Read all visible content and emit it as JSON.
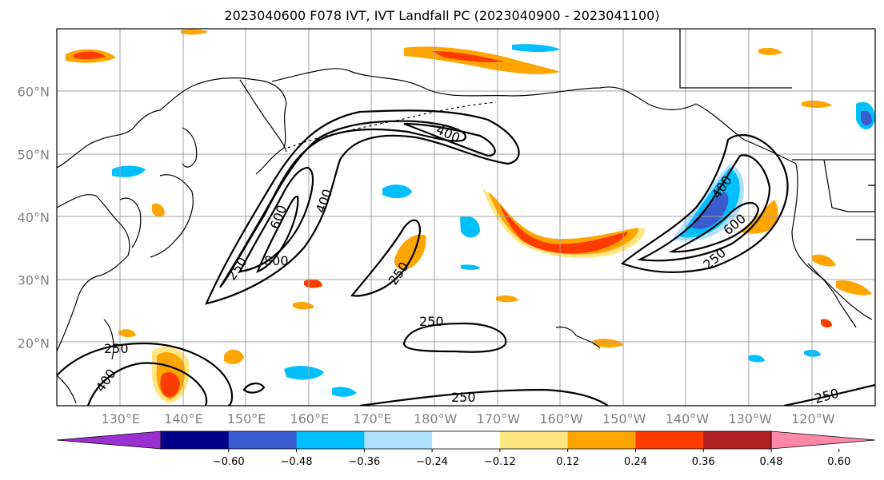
{
  "title": "2023040600 F078 IVT, IVT Landfall PC (2023040900 - 2023041100)",
  "map": {
    "lat_labels": [
      {
        "text": "60°N",
        "lat": 60
      },
      {
        "text": "50°N",
        "lat": 50
      },
      {
        "text": "40°N",
        "lat": 40
      },
      {
        "text": "30°N",
        "lat": 30
      },
      {
        "text": "20°N",
        "lat": 20
      }
    ],
    "lon_labels": [
      {
        "text": "130°E",
        "lon": 130
      },
      {
        "text": "140°E",
        "lon": 140
      },
      {
        "text": "150°E",
        "lon": 150
      },
      {
        "text": "160°E",
        "lon": 160
      },
      {
        "text": "170°E",
        "lon": 170
      },
      {
        "text": "180°W",
        "lon": 180
      },
      {
        "text": "170°W",
        "lon": 190
      },
      {
        "text": "160°W",
        "lon": 200
      },
      {
        "text": "150°W",
        "lon": 210
      },
      {
        "text": "140°W",
        "lon": 220
      },
      {
        "text": "130°W",
        "lon": 230
      },
      {
        "text": "120°W",
        "lon": 240
      }
    ],
    "extent": {
      "lon_min": 120,
      "lon_max": 250,
      "lat_min": 10,
      "lat_max": 70
    },
    "ivt_contour_labels": [
      "250",
      "400",
      "600",
      "800"
    ],
    "colorbar": {
      "ticks": [
        "−0.60",
        "−0.48",
        "−0.36",
        "−0.24",
        "−0.12",
        "0.12",
        "0.24",
        "0.36",
        "0.48",
        "0.60"
      ],
      "colors": [
        "#9b30d0",
        "#00008b",
        "#3a5bcf",
        "#00bfff",
        "#b0e0ff",
        "#ffffff",
        "#ffe680",
        "#ffa500",
        "#ff3c00",
        "#b22222",
        "#ff88aa"
      ]
    },
    "colors": {
      "orange": "#ffa500",
      "red_orange": "#ff3c00",
      "light_yellow": "#ffe680",
      "sky_blue": "#00bfff",
      "light_blue": "#b0e0ff",
      "royal_blue": "#3a5bcf"
    }
  }
}
